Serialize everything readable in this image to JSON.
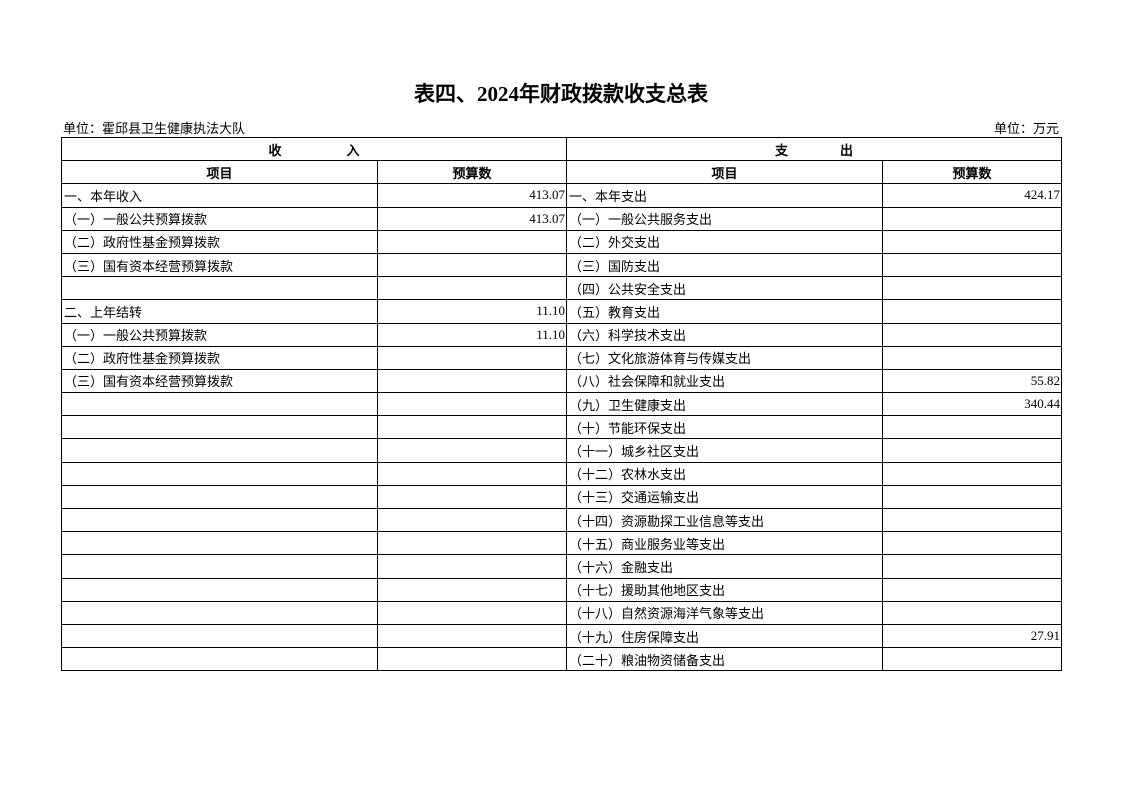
{
  "title": "表四、2024年财政拨款收支总表",
  "unit_org": "单位：霍邱县卫生健康执法大队",
  "unit_currency": "单位：万元",
  "headers": {
    "income": "收　　　　　入",
    "expense": "支　　　　出",
    "item": "项目",
    "budget": "预算数"
  },
  "rows": [
    {
      "in_item": "一、本年收入",
      "in_val": "413.07",
      "out_item": "一、本年支出",
      "out_val": "424.17"
    },
    {
      "in_item": "（一）一般公共预算拨款",
      "in_val": "413.07",
      "out_item": "（一）一般公共服务支出",
      "out_val": ""
    },
    {
      "in_item": "（二）政府性基金预算拨款",
      "in_val": "",
      "out_item": "（二）外交支出",
      "out_val": ""
    },
    {
      "in_item": "（三）国有资本经营预算拨款",
      "in_val": "",
      "out_item": "（三）国防支出",
      "out_val": ""
    },
    {
      "in_item": "",
      "in_val": "",
      "out_item": "（四）公共安全支出",
      "out_val": ""
    },
    {
      "in_item": "二、上年结转",
      "in_val": "11.10",
      "out_item": "（五）教育支出",
      "out_val": ""
    },
    {
      "in_item": "（一）一般公共预算拨款",
      "in_val": "11.10",
      "out_item": "（六）科学技术支出",
      "out_val": ""
    },
    {
      "in_item": "（二）政府性基金预算拨款",
      "in_val": "",
      "out_item": "（七）文化旅游体育与传媒支出",
      "out_val": ""
    },
    {
      "in_item": "（三）国有资本经营预算拨款",
      "in_val": "",
      "out_item": "（八）社会保障和就业支出",
      "out_val": "55.82"
    },
    {
      "in_item": "",
      "in_val": "",
      "out_item": "（九）卫生健康支出",
      "out_val": "340.44"
    },
    {
      "in_item": "",
      "in_val": "",
      "out_item": "（十）节能环保支出",
      "out_val": ""
    },
    {
      "in_item": "",
      "in_val": "",
      "out_item": "（十一）城乡社区支出",
      "out_val": ""
    },
    {
      "in_item": "",
      "in_val": "",
      "out_item": "（十二）农林水支出",
      "out_val": ""
    },
    {
      "in_item": "",
      "in_val": "",
      "out_item": "（十三）交通运输支出",
      "out_val": ""
    },
    {
      "in_item": "",
      "in_val": "",
      "out_item": "（十四）资源勘探工业信息等支出",
      "out_val": ""
    },
    {
      "in_item": "",
      "in_val": "",
      "out_item": "（十五）商业服务业等支出",
      "out_val": ""
    },
    {
      "in_item": "",
      "in_val": "",
      "out_item": "（十六）金融支出",
      "out_val": ""
    },
    {
      "in_item": "",
      "in_val": "",
      "out_item": "（十七）援助其他地区支出",
      "out_val": ""
    },
    {
      "in_item": "",
      "in_val": "",
      "out_item": "（十八）自然资源海洋气象等支出",
      "out_val": ""
    },
    {
      "in_item": "",
      "in_val": "",
      "out_item": "（十九）住房保障支出",
      "out_val": "27.91"
    },
    {
      "in_item": "",
      "in_val": "",
      "out_item": "（二十）粮油物资储备支出",
      "out_val": ""
    }
  ]
}
